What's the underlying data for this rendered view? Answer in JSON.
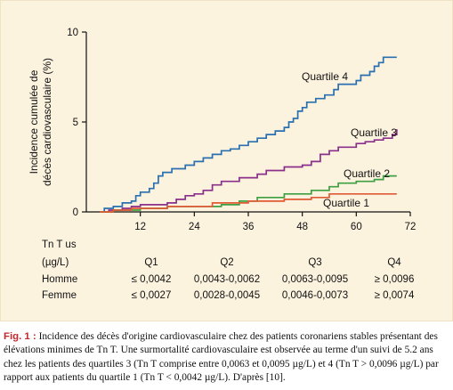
{
  "chart_data": {
    "type": "line",
    "step": true,
    "ylabel_line1": "Incidence cumulée de",
    "ylabel_line2": "décès cardiovasculaire (%)",
    "xlim": [
      0,
      72
    ],
    "ylim": [
      0,
      10
    ],
    "x_ticks": [
      12,
      24,
      36,
      48,
      60,
      72
    ],
    "y_ticks": [
      0,
      5,
      10
    ],
    "grid": false,
    "series": [
      {
        "name": "Quartile 4",
        "color": "#2a6fb0",
        "points": [
          [
            3,
            0
          ],
          [
            4,
            0.2
          ],
          [
            6,
            0.3
          ],
          [
            8,
            0.5
          ],
          [
            10,
            0.6
          ],
          [
            11,
            0.9
          ],
          [
            12,
            1.1
          ],
          [
            14,
            1.3
          ],
          [
            15,
            1.6
          ],
          [
            16,
            2.0
          ],
          [
            17,
            2.2
          ],
          [
            19,
            2.4
          ],
          [
            22,
            2.6
          ],
          [
            24,
            2.8
          ],
          [
            26,
            3.0
          ],
          [
            28,
            3.2
          ],
          [
            30,
            3.4
          ],
          [
            32,
            3.5
          ],
          [
            34,
            3.7
          ],
          [
            36,
            3.9
          ],
          [
            38,
            4.1
          ],
          [
            40,
            4.3
          ],
          [
            42,
            4.5
          ],
          [
            44,
            4.7
          ],
          [
            45,
            5.0
          ],
          [
            46,
            5.2
          ],
          [
            47,
            5.6
          ],
          [
            48,
            5.8
          ],
          [
            49,
            6.1
          ],
          [
            51,
            6.3
          ],
          [
            53,
            6.5
          ],
          [
            55,
            6.8
          ],
          [
            56,
            7.1
          ],
          [
            60,
            7.3
          ],
          [
            61,
            7.6
          ],
          [
            63,
            7.8
          ],
          [
            64,
            8.1
          ],
          [
            65,
            8.3
          ],
          [
            66,
            8.6
          ],
          [
            69,
            8.6
          ]
        ]
      },
      {
        "name": "Quartile 3",
        "color": "#8a2f8a",
        "points": [
          [
            3,
            0
          ],
          [
            5,
            0.1
          ],
          [
            8,
            0.2
          ],
          [
            10,
            0.3
          ],
          [
            12,
            0.4
          ],
          [
            18,
            0.5
          ],
          [
            20,
            0.7
          ],
          [
            22,
            0.9
          ],
          [
            24,
            1.0
          ],
          [
            26,
            1.2
          ],
          [
            28,
            1.5
          ],
          [
            30,
            1.7
          ],
          [
            34,
            1.9
          ],
          [
            38,
            2.1
          ],
          [
            40,
            2.3
          ],
          [
            44,
            2.5
          ],
          [
            48,
            2.6
          ],
          [
            50,
            2.8
          ],
          [
            52,
            3.2
          ],
          [
            54,
            3.4
          ],
          [
            56,
            3.6
          ],
          [
            60,
            3.8
          ],
          [
            62,
            3.9
          ],
          [
            64,
            4.0
          ],
          [
            66,
            4.1
          ],
          [
            68,
            4.3
          ],
          [
            69,
            4.6
          ]
        ]
      },
      {
        "name": "Quartile 2",
        "color": "#3ca042",
        "points": [
          [
            3,
            0
          ],
          [
            6,
            0.1
          ],
          [
            12,
            0.2
          ],
          [
            18,
            0.3
          ],
          [
            30,
            0.4
          ],
          [
            34,
            0.6
          ],
          [
            38,
            0.8
          ],
          [
            44,
            1.0
          ],
          [
            50,
            1.2
          ],
          [
            54,
            1.4
          ],
          [
            56,
            1.6
          ],
          [
            60,
            1.7
          ],
          [
            64,
            1.8
          ],
          [
            66,
            2.0
          ],
          [
            69,
            2.0
          ]
        ]
      },
      {
        "name": "Quartile 1",
        "color": "#e05a35",
        "points": [
          [
            3,
            0
          ],
          [
            6,
            0.1
          ],
          [
            10,
            0.2
          ],
          [
            18,
            0.3
          ],
          [
            28,
            0.5
          ],
          [
            36,
            0.6
          ],
          [
            44,
            0.7
          ],
          [
            50,
            0.8
          ],
          [
            54,
            1.0
          ],
          [
            69,
            1.0
          ]
        ]
      }
    ]
  },
  "table": {
    "header_line1": "Tn T us",
    "header_line2": "(µg/L)",
    "columns": [
      "Q1",
      "Q2",
      "Q3",
      "Q4"
    ],
    "rows": [
      {
        "label": "Homme",
        "values": [
          "≤ 0,0042",
          "0,0043-0,0062",
          "0,0063-0,0095",
          "≥ 0,0096"
        ]
      },
      {
        "label": "Femme",
        "values": [
          "≤ 0,0027",
          "0,0028-0,0045",
          "0,0046-0,0073",
          "≥ 0,0074"
        ]
      }
    ]
  },
  "caption": {
    "label": "Fig. 1 :",
    "text": "Incidence des décès d'origine cardiovasculaire chez des patients coronariens stables présentant des élévations minimes de Tn T. Une surmortalité cardiovasculaire est observée au terme d'un suivi de 5.2 ans chez les patients des quartiles 3 (Tn T comprise entre 0,0063 et 0,0095 µg/L) et 4 (Tn T > 0,0096 µg/L) par rapport aux patients du quartile 1 (Tn T < 0,0042 µg/L). D'après [10]."
  },
  "colors": {
    "panel_bg": "#fcf3df",
    "axis": "#111111",
    "caption_label": "#c0282e"
  }
}
